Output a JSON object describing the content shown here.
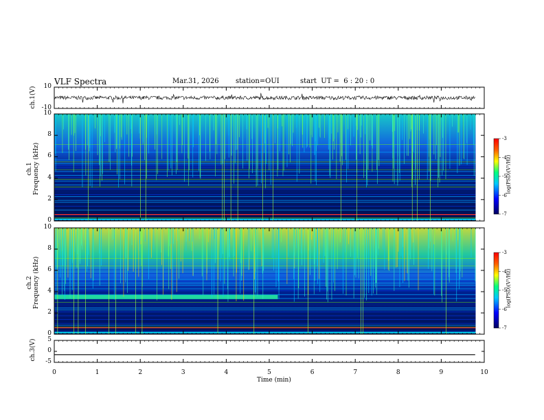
{
  "header": {
    "title": "VLF Spectra",
    "date": "Mar.31, 2026",
    "station": "station=OUI",
    "start": "start  UT =  6 : 20 : 0"
  },
  "colors": {
    "background": "#ffffff",
    "spectrogram_dark": "#000040",
    "spectrogram_mid": "#0033ff",
    "accent_green": "#7fff00",
    "accent_red": "#ff2020"
  },
  "chart_data": [
    {
      "type": "line",
      "name": "ch1-waveform",
      "ylabel": "ch.1(V)",
      "ylim": [
        -10,
        10
      ],
      "yticks": [
        "10",
        "-10"
      ],
      "baseline": 0
    },
    {
      "type": "heatmap",
      "name": "ch1-spectrogram",
      "ylabel": "ch.1\nFrequency (kHz)",
      "ylim": [
        0,
        10
      ],
      "yticks": [
        "0",
        "2",
        "4",
        "6",
        "8",
        "10"
      ],
      "colorbar": {
        "ticks": [
          "-3",
          "-4",
          "-5",
          "-6",
          "-7"
        ],
        "label": "log(PSD)(V²/Hz)"
      }
    },
    {
      "type": "heatmap",
      "name": "ch2-spectrogram",
      "ylabel": "ch.2\nFrequency (kHz)",
      "ylim": [
        0,
        10
      ],
      "yticks": [
        "0",
        "2",
        "4",
        "6",
        "8",
        "10"
      ],
      "band_note_khz": 3.5,
      "band_until_min": 5.2,
      "colorbar": {
        "ticks": [
          "-3",
          "-4",
          "-5",
          "-6",
          "-7"
        ],
        "label": "log(PSD)(V²/Hz)"
      }
    },
    {
      "type": "line",
      "name": "ch3-waveform",
      "ylabel": "ch.3(V)",
      "ylim": [
        -5,
        5
      ],
      "yticks": [
        "5",
        "0",
        "-5"
      ],
      "baseline": -1.5
    }
  ],
  "xaxis": {
    "label": "Time  (min)",
    "ticks": [
      "0",
      "1",
      "2",
      "3",
      "4",
      "5",
      "6",
      "7",
      "8",
      "9",
      "10"
    ],
    "xlim": [
      0,
      10
    ],
    "data_end_min": 9.8
  }
}
